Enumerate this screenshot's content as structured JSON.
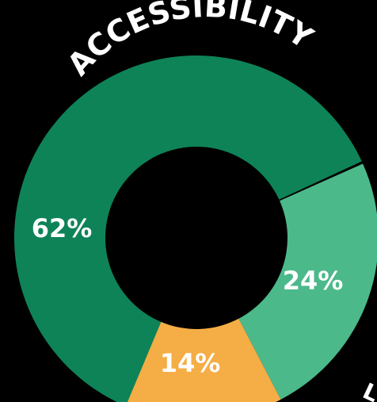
{
  "chart_data": {
    "type": "pie",
    "title": "ACCESSIBILITY",
    "categories": [
      "",
      "",
      ""
    ],
    "values": [
      62,
      24,
      14
    ],
    "labels": [
      "62%",
      "24%",
      "14%"
    ],
    "colors": [
      "#0e8358",
      "#4cb98b",
      "#f5ad45"
    ]
  },
  "background_color": "#000000",
  "fragment_text": "L"
}
